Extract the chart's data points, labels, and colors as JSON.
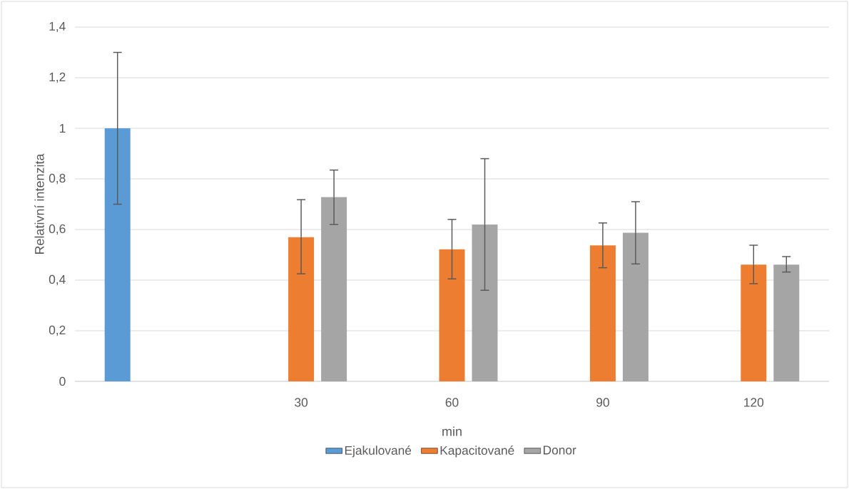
{
  "chart_data": {
    "type": "bar",
    "xlabel": "min",
    "ylabel": "Relativní intenzita",
    "categories": [
      null,
      "30",
      "60",
      "90",
      "120"
    ],
    "series": [
      {
        "name": "Ejakulované",
        "color": "#5b9bd5",
        "values": [
          1,
          null,
          null,
          null,
          null
        ],
        "errors": [
          [
            0.7,
            1.3
          ],
          null,
          null,
          null,
          null
        ]
      },
      {
        "name": "Kapacitované",
        "color": "#ed7d31",
        "values": [
          null,
          0.57,
          0.522,
          0.537,
          0.461
        ],
        "errors": [
          null,
          [
            0.425,
            0.718
          ],
          [
            0.405,
            0.64
          ],
          [
            0.449,
            0.626
          ],
          [
            0.386,
            0.538
          ]
        ]
      },
      {
        "name": "Donor",
        "color": "#a5a5a5",
        "values": [
          null,
          0.728,
          0.62,
          0.587,
          0.461
        ],
        "errors": [
          null,
          [
            0.62,
            0.835
          ],
          [
            0.36,
            0.88
          ],
          [
            0.464,
            0.71
          ],
          [
            0.432,
            0.493
          ]
        ]
      }
    ],
    "ylim": [
      0,
      1.4
    ],
    "yticks": [
      0,
      {
        "value": 0.2,
        "label": "0,2"
      },
      {
        "value": 0.4,
        "label": "0,4"
      },
      {
        "value": 0.6,
        "label": "0,6"
      },
      {
        "value": 0.8,
        "label": "0,8"
      },
      1,
      {
        "value": 1.2,
        "label": "1,2"
      },
      {
        "value": 1.4,
        "label": "1,4"
      }
    ],
    "grid": "y",
    "legend": "bottom"
  }
}
